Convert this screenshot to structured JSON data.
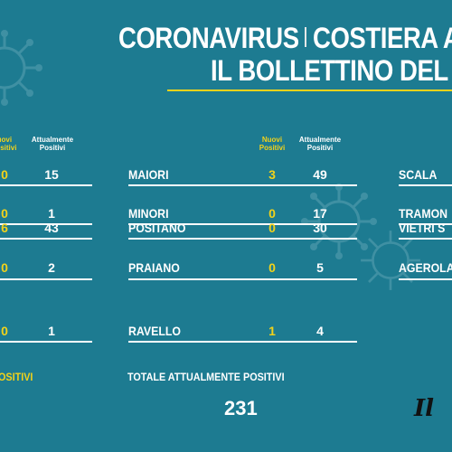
{
  "header": {
    "line1_left": "CORONAVIRUS",
    "line1_right": "COSTIERA A",
    "line2": "IL BOLLETTINO DEL"
  },
  "columns": {
    "new_label": "Nuovi Positivi",
    "current_label": "Attualmente Positivi"
  },
  "left_column": {
    "rows": [
      {
        "new": "0",
        "current": "15"
      },
      {
        "new": "0",
        "current": "1"
      },
      {
        "new": "6",
        "current": "43"
      },
      {
        "new": "0",
        "current": "2"
      },
      {
        "new": "0",
        "current": "1"
      }
    ],
    "total_label": "OSITIVI"
  },
  "middle_column": {
    "rows": [
      {
        "town": "MAIORI",
        "new": "3",
        "current": "49"
      },
      {
        "town": "MINORI",
        "new": "0",
        "current": "17"
      },
      {
        "town": "POSITANO",
        "new": "0",
        "current": "30"
      },
      {
        "town": "PRAIANO",
        "new": "0",
        "current": "5"
      },
      {
        "town": "RAVELLO",
        "new": "1",
        "current": "4"
      }
    ]
  },
  "right_column": {
    "towns": [
      "SCALA",
      "TRAMON",
      "VIETRI S",
      "AGEROLA"
    ]
  },
  "totals": {
    "label": "TOTALE ATTUALMENTE POSITIVI",
    "value": "231"
  },
  "logo_text": "Il",
  "colors": {
    "background": "#1d7b91",
    "accent_yellow": "#f2d21a",
    "text_white": "#ffffff"
  }
}
